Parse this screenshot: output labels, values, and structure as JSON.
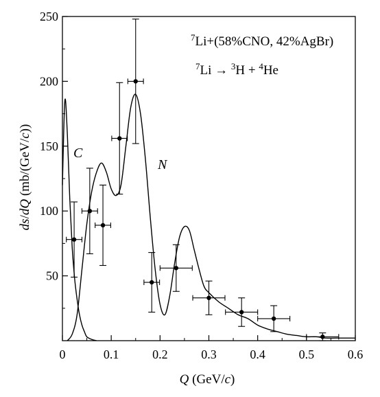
{
  "chart_data": {
    "type": "scatter",
    "title": "",
    "xlabel": "Q  (GeV/c)",
    "ylabel": "ds/dQ  (mb/(GeV/c))",
    "xlim": [
      0,
      0.6
    ],
    "ylim": [
      0,
      250
    ],
    "x_ticks": [
      0,
      0.1,
      0.2,
      0.3,
      0.4,
      0.5,
      0.6
    ],
    "x_tick_labels": [
      "0",
      "0.1",
      "0.2",
      "0.3",
      "0.4",
      "0.5",
      "0.6"
    ],
    "y_ticks": [
      50,
      100,
      150,
      200,
      250
    ],
    "y_tick_labels": [
      "50",
      "100",
      "150",
      "200",
      "250"
    ],
    "grid": false,
    "annotations": {
      "line1": "7Li+(58%CNO, 42%AgBr)",
      "line2": "7Li → 3H + 4He",
      "curve_c": "C",
      "curve_n": "N"
    },
    "series": [
      {
        "kind": "points",
        "x": [
          0.024,
          0.056,
          0.083,
          0.117,
          0.15,
          0.183,
          0.233,
          0.3,
          0.367,
          0.433,
          0.533
        ],
        "y": [
          78,
          100,
          89,
          156,
          200,
          45,
          56,
          33,
          22,
          17,
          3
        ],
        "yerr": [
          29,
          33,
          31,
          43,
          48,
          23,
          18,
          13,
          11,
          10,
          3
        ],
        "xerr": [
          0.016,
          0.016,
          0.016,
          0.016,
          0.016,
          0.016,
          0.033,
          0.033,
          0.033,
          0.033,
          0.033
        ]
      },
      {
        "kind": "curve",
        "x": [
          0.0,
          0.005,
          0.01,
          0.015,
          0.02,
          0.025,
          0.03,
          0.035,
          0.04,
          0.045,
          0.05,
          0.06,
          0.07
        ],
        "y": [
          120,
          185,
          160,
          110,
          72,
          48,
          32,
          20,
          12,
          7,
          3,
          1,
          0
        ]
      },
      {
        "kind": "curve",
        "x": [
          0.01,
          0.02,
          0.03,
          0.04,
          0.05,
          0.06,
          0.07,
          0.08,
          0.09,
          0.1,
          0.11,
          0.12,
          0.13,
          0.14,
          0.15,
          0.16,
          0.17,
          0.18,
          0.19,
          0.2,
          0.21,
          0.22,
          0.23,
          0.24,
          0.25,
          0.26,
          0.27,
          0.28,
          0.29,
          0.3,
          0.32,
          0.34,
          0.36,
          0.38,
          0.4,
          0.42,
          0.44,
          0.46,
          0.48,
          0.5,
          0.52,
          0.54,
          0.56,
          0.58,
          0.6
        ],
        "y": [
          0,
          5,
          20,
          55,
          90,
          115,
          130,
          137,
          130,
          117,
          112,
          120,
          150,
          180,
          190,
          175,
          140,
          95,
          55,
          28,
          20,
          35,
          60,
          80,
          88,
          85,
          70,
          55,
          42,
          37,
          30,
          25,
          20,
          17,
          12,
          9,
          7,
          5,
          4,
          3,
          3,
          2,
          2,
          2,
          2
        ]
      }
    ]
  }
}
